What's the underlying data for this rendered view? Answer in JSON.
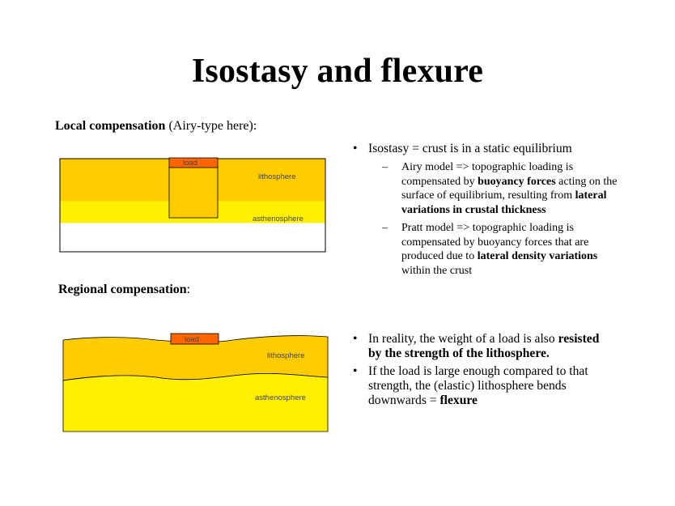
{
  "title": "Isostasy and flexure",
  "local": {
    "heading_bold": "Local compensation",
    "heading_rest": " (Airy-type here):",
    "load_label": "load",
    "lithosphere_label": "lithosphere",
    "asthenosphere_label": "asthenosphere"
  },
  "regional": {
    "heading_bold": "Regional compensation",
    "heading_rest": ":",
    "load_label": "load",
    "lithosphere_label": "lithosphere",
    "asthenosphere_label": "asthenosphere"
  },
  "colors": {
    "lithosphere": "#FFCC00",
    "asthenosphere": "#FFF000",
    "load": "#FF6600",
    "outline": "#000000"
  },
  "bullets_top": {
    "main": "Isostasy = crust is in a static equilibrium",
    "airy": {
      "t1": "Airy model => topographic loading is compensated by ",
      "b1": "buoyancy forces",
      "t2": " acting on the surface of equilibrium, resulting from ",
      "b2": "lateral variations in crustal thickness",
      "t3": ""
    },
    "pratt": {
      "t1": "Pratt model => topographic loading is compensated by buoyancy forces that are produced due to ",
      "b1": "lateral density variations",
      "t2": " within the crust"
    }
  },
  "bullets_bottom": {
    "b1": {
      "t1": "In reality, the weight of a load is also ",
      "b1": "resisted by the strength of the lithosphere."
    },
    "b2": {
      "t1": "If the load is large enough compared to that strength, the (elastic) lithosphere bends downwards = ",
      "b1": "flexure"
    }
  }
}
